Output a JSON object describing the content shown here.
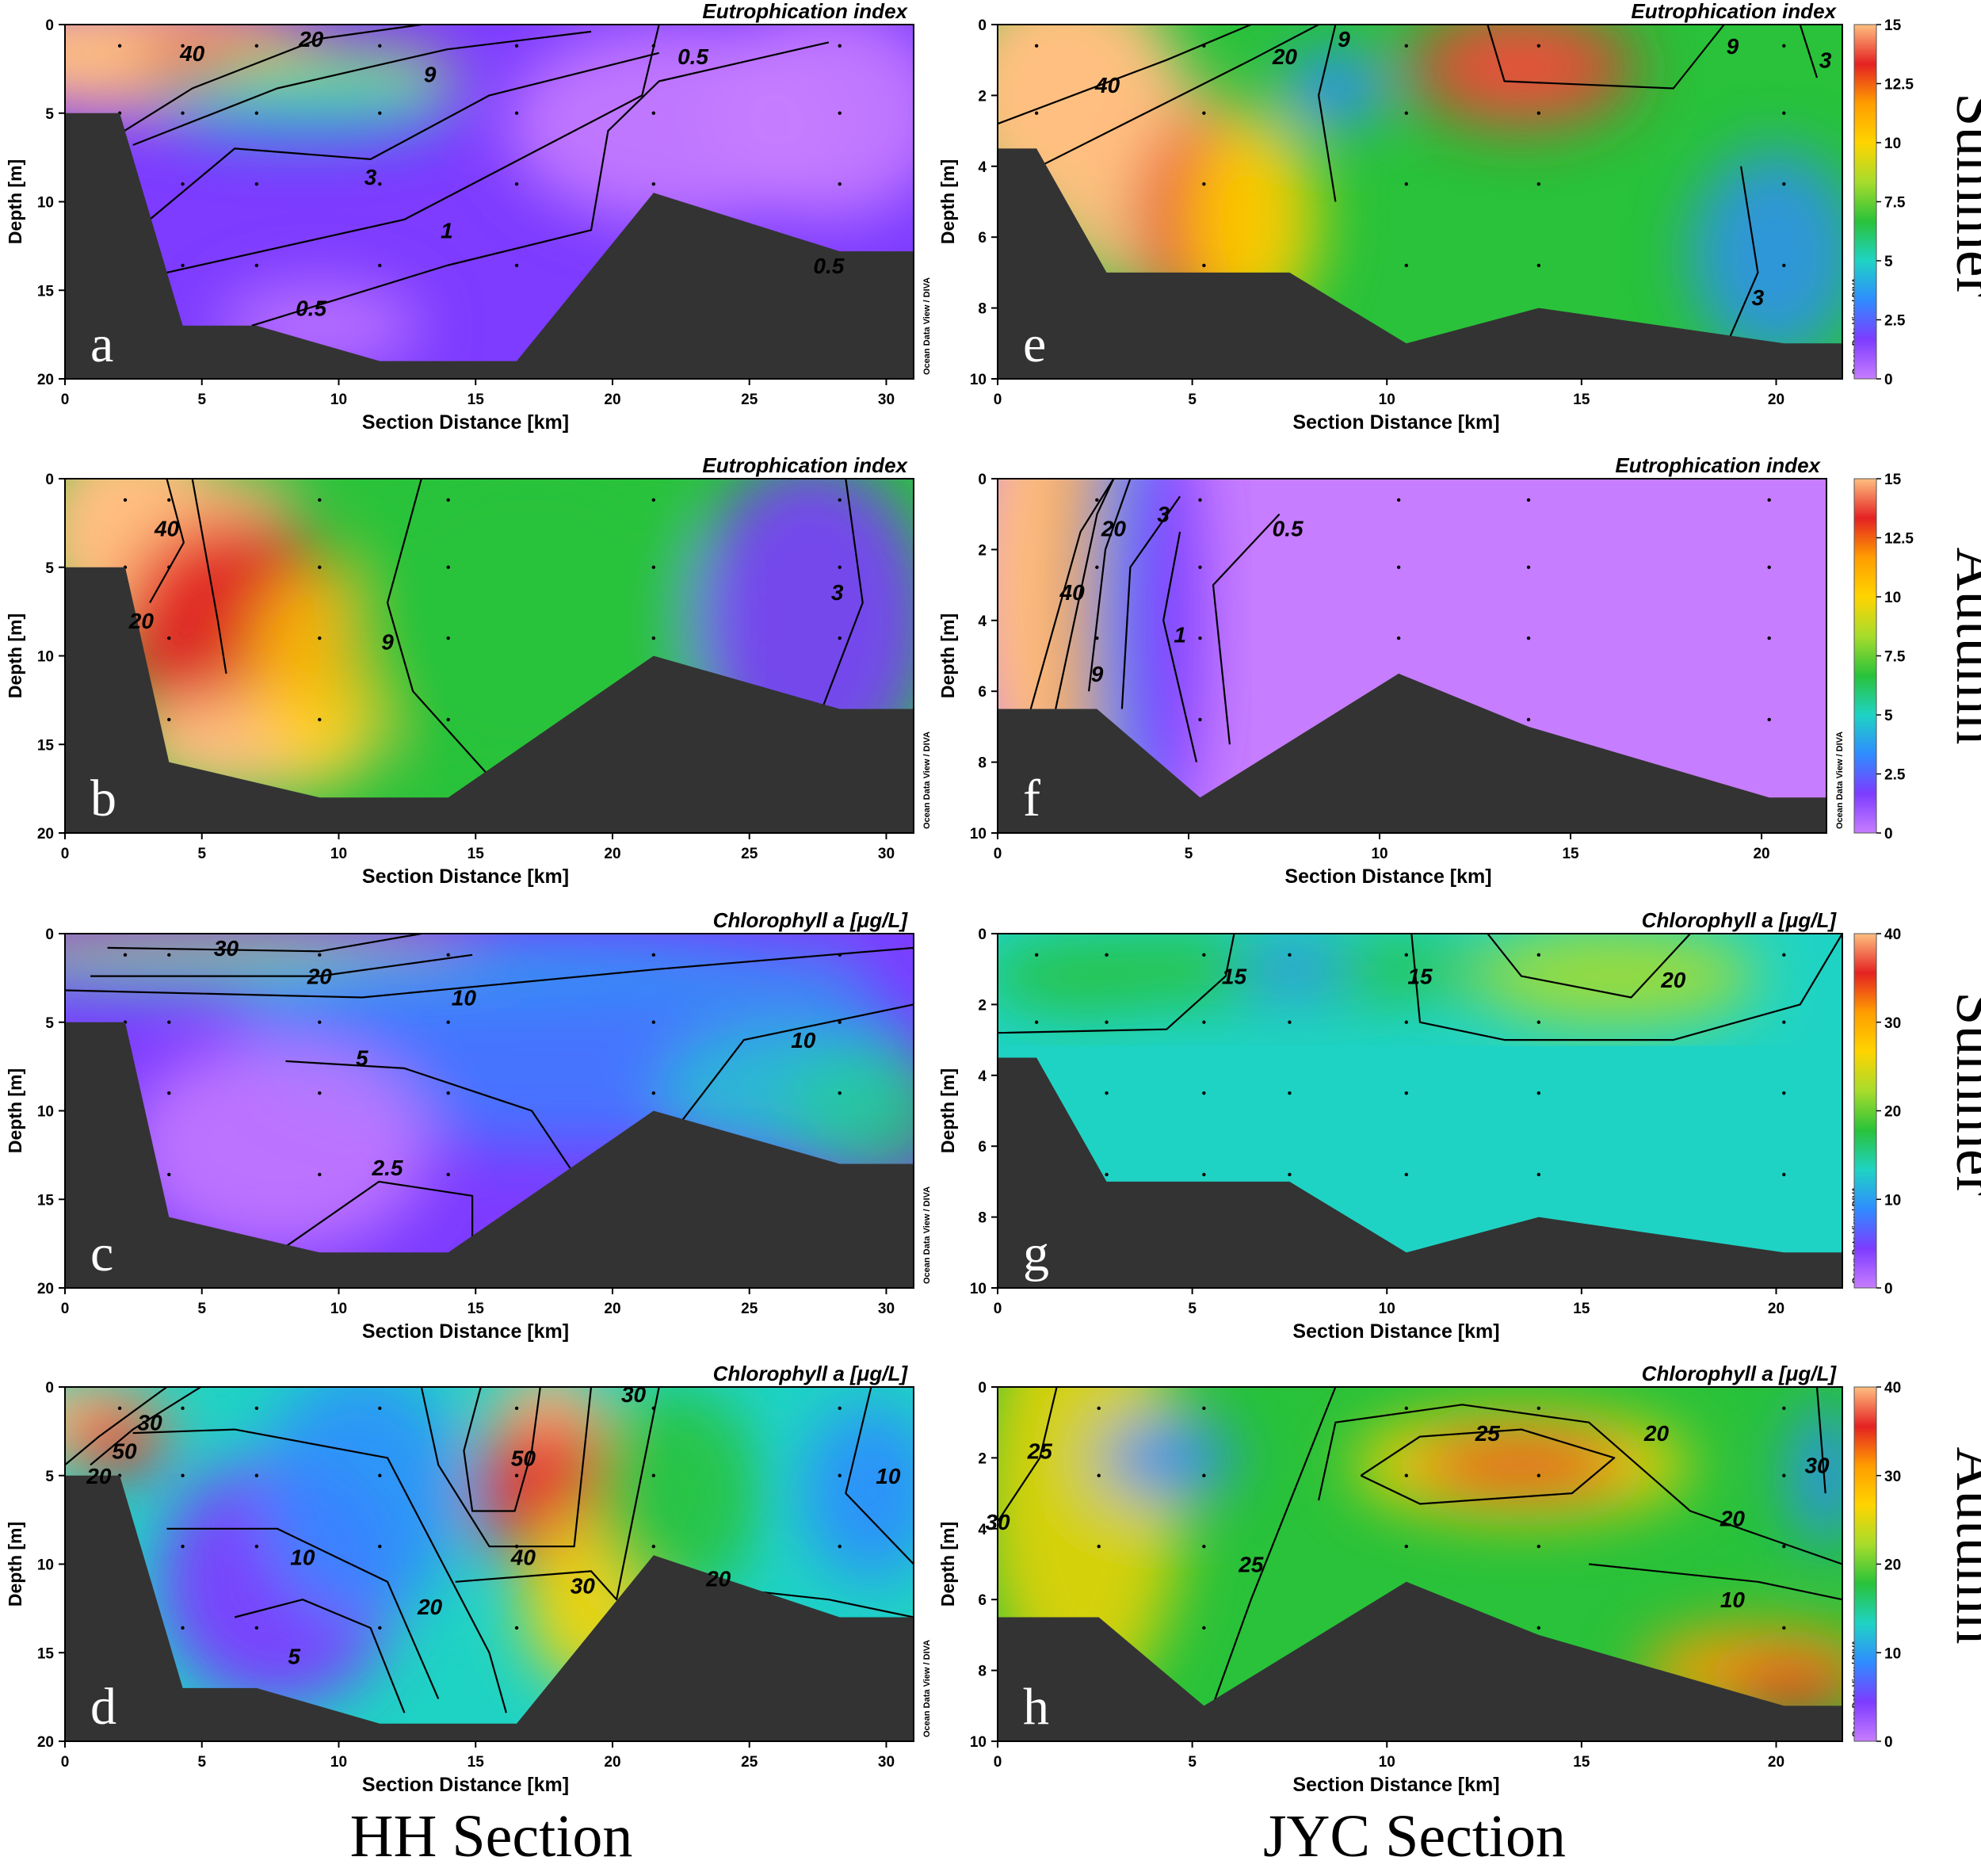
{
  "figure": {
    "bottom_labels": [
      "HH  Section",
      "JYC  Section"
    ],
    "season_labels": [
      "Summer",
      "Autumn",
      "Summer",
      "Autumn"
    ],
    "credit": "Ocean Data View / DIVA",
    "colors": {
      "ocean_floor": "#333333",
      "colormap": [
        "#c77dff",
        "#7d3cff",
        "#2f8cff",
        "#1fd3c4",
        "#29c23a",
        "#a7dc2c",
        "#ffd400",
        "#ff9d00",
        "#e42222",
        "#ffbf80"
      ]
    }
  },
  "chart_data": [
    {
      "panel": "a",
      "type": "heatmap",
      "title": "Eutrophication index",
      "xlabel": "Section Distance [km]",
      "ylabel": "Depth [m]",
      "xlim": [
        0,
        31
      ],
      "ylim": [
        20,
        0
      ],
      "xticks": [
        0,
        5,
        10,
        15,
        20,
        25,
        30
      ],
      "yticks": [
        0,
        5,
        10,
        15,
        20
      ],
      "contour_labels": [
        "40",
        "20",
        "9",
        "3",
        "1",
        "0.5",
        "0.5",
        "0.5"
      ],
      "stations_km": [
        2,
        4.3,
        7,
        11.5,
        16.5,
        21.5,
        28.3
      ],
      "bottom_profile": [
        [
          0,
          5
        ],
        [
          2,
          5
        ],
        [
          4.3,
          17
        ],
        [
          7,
          17
        ],
        [
          11.5,
          19
        ],
        [
          16.5,
          19
        ],
        [
          21.5,
          9.5
        ],
        [
          28.3,
          12.8
        ],
        [
          31,
          12.8
        ]
      ],
      "grid": false
    },
    {
      "panel": "b",
      "type": "heatmap",
      "title": "Eutrophication index",
      "xlabel": "Section Distance [km]",
      "ylabel": "Depth [m]",
      "xlim": [
        0,
        31
      ],
      "ylim": [
        20,
        0
      ],
      "xticks": [
        0,
        5,
        10,
        15,
        20,
        25,
        30
      ],
      "yticks": [
        0,
        5,
        10,
        15,
        20
      ],
      "contour_labels": [
        "40",
        "20",
        "9",
        "3"
      ],
      "stations_km": [
        2.2,
        3.8,
        9.3,
        14,
        21.5,
        28.3
      ],
      "bottom_profile": [
        [
          0,
          5
        ],
        [
          2.2,
          5
        ],
        [
          3.8,
          16
        ],
        [
          9.3,
          18
        ],
        [
          14,
          18
        ],
        [
          21.5,
          10
        ],
        [
          28.3,
          13
        ],
        [
          31,
          13
        ]
      ],
      "grid": false
    },
    {
      "panel": "c",
      "type": "heatmap",
      "title": "Chlorophyll a [μg/L]",
      "xlabel": "Section Distance [km]",
      "ylabel": "Depth [m]",
      "xlim": [
        0,
        31
      ],
      "ylim": [
        20,
        0
      ],
      "xticks": [
        0,
        5,
        10,
        15,
        20,
        25,
        30
      ],
      "yticks": [
        0,
        5,
        10,
        15,
        20
      ],
      "contour_labels": [
        "30",
        "20",
        "10",
        "5",
        "10",
        "2.5"
      ],
      "stations_km": [
        2.2,
        3.8,
        9.3,
        14,
        21.5,
        28.3
      ],
      "bottom_profile": [
        [
          0,
          5
        ],
        [
          2.2,
          5
        ],
        [
          3.8,
          16
        ],
        [
          9.3,
          18
        ],
        [
          14,
          18
        ],
        [
          21.5,
          10
        ],
        [
          28.3,
          13
        ],
        [
          31,
          13
        ]
      ],
      "grid": false
    },
    {
      "panel": "d",
      "type": "heatmap",
      "title": "Chlorophyll a [μg/L]",
      "xlabel": "Section Distance [km]",
      "ylabel": "Depth [m]",
      "xlim": [
        0,
        31
      ],
      "ylim": [
        20,
        0
      ],
      "xticks": [
        0,
        5,
        10,
        15,
        20,
        25,
        30
      ],
      "yticks": [
        0,
        5,
        10,
        15,
        20
      ],
      "contour_labels": [
        "50",
        "30",
        "20",
        "10",
        "5",
        "20",
        "50",
        "40",
        "30",
        "30",
        "20",
        "10"
      ],
      "stations_km": [
        2,
        4.3,
        7,
        11.5,
        16.5,
        21.5,
        28.3
      ],
      "bottom_profile": [
        [
          0,
          5
        ],
        [
          2,
          5
        ],
        [
          4.3,
          17
        ],
        [
          7,
          17
        ],
        [
          11.5,
          19
        ],
        [
          16.5,
          19
        ],
        [
          21.5,
          9.5
        ],
        [
          28.3,
          13
        ],
        [
          31,
          13
        ]
      ],
      "grid": false
    },
    {
      "panel": "e",
      "type": "heatmap",
      "title": "Eutrophication index",
      "xlabel": "Section Distance [km]",
      "ylabel": "Depth [m]",
      "xlim": [
        0,
        21.7
      ],
      "ylim": [
        10,
        0
      ],
      "xticks": [
        0,
        5,
        10,
        15,
        20
      ],
      "yticks": [
        0,
        2,
        4,
        6,
        8,
        10
      ],
      "contour_labels": [
        "40",
        "20",
        "9",
        "9",
        "3",
        "3"
      ],
      "stations_km": [
        1,
        5.3,
        10.5,
        13.9,
        20.2
      ],
      "bottom_profile": [
        [
          0,
          3.5
        ],
        [
          1,
          3.5
        ],
        [
          2.8,
          7
        ],
        [
          7.5,
          7
        ],
        [
          10.5,
          9
        ],
        [
          13.9,
          8
        ],
        [
          20.2,
          9
        ],
        [
          21.7,
          9
        ]
      ],
      "grid": false
    },
    {
      "panel": "f",
      "type": "heatmap",
      "title": "Eutrophication index",
      "xlabel": "Section Distance [km]",
      "ylabel": "Depth [m]",
      "xlim": [
        0,
        21.7
      ],
      "ylim": [
        10,
        0
      ],
      "xticks": [
        0,
        5,
        10,
        15,
        20
      ],
      "yticks": [
        0,
        2,
        4,
        6,
        8,
        10
      ],
      "contour_labels": [
        "40",
        "20",
        "9",
        "3",
        "1",
        "0.5"
      ],
      "stations_km": [
        2.6,
        5.3,
        10.5,
        13.9,
        20.2
      ],
      "bottom_profile": [
        [
          0,
          6.5
        ],
        [
          2.6,
          6.5
        ],
        [
          5.3,
          9
        ],
        [
          10.5,
          5.5
        ],
        [
          13.9,
          7
        ],
        [
          20.2,
          9
        ],
        [
          21.7,
          9
        ]
      ],
      "grid": false
    },
    {
      "panel": "g",
      "type": "heatmap",
      "title": "Chlorophyll a [μg/L]",
      "xlabel": "Section Distance [km]",
      "ylabel": "Depth [m]",
      "xlim": [
        0,
        21.7
      ],
      "ylim": [
        10,
        0
      ],
      "xticks": [
        0,
        5,
        10,
        15,
        20
      ],
      "yticks": [
        0,
        2,
        4,
        6,
        8,
        10
      ],
      "contour_labels": [
        "15",
        "15",
        "20"
      ],
      "stations_km": [
        1,
        2.8,
        5.3,
        7.5,
        10.5,
        13.9,
        20.2
      ],
      "bottom_profile": [
        [
          0,
          3.5
        ],
        [
          1,
          3.5
        ],
        [
          2.8,
          7
        ],
        [
          7.5,
          7
        ],
        [
          10.5,
          9
        ],
        [
          13.9,
          8
        ],
        [
          20.2,
          9
        ],
        [
          21.7,
          9
        ]
      ],
      "grid": false
    },
    {
      "panel": "h",
      "type": "heatmap",
      "title": "Chlorophyll a [μg/L]",
      "xlabel": "Section Distance [km]",
      "ylabel": "Depth [m]",
      "xlim": [
        0,
        21.7
      ],
      "ylim": [
        10,
        0
      ],
      "xticks": [
        0,
        5,
        10,
        15,
        20
      ],
      "yticks": [
        0,
        2,
        4,
        6,
        8,
        10
      ],
      "contour_labels": [
        "25",
        "30",
        "25",
        "20",
        "20",
        "25",
        "10",
        "30"
      ],
      "stations_km": [
        2.6,
        5.3,
        10.5,
        13.9,
        20.2
      ],
      "bottom_profile": [
        [
          0,
          6.5
        ],
        [
          2.6,
          6.5
        ],
        [
          5.3,
          9
        ],
        [
          10.5,
          5.5
        ],
        [
          13.9,
          7
        ],
        [
          20.2,
          9
        ],
        [
          21.7,
          9
        ]
      ],
      "grid": false
    }
  ],
  "colorbars": [
    {
      "panels": [
        "e",
        "f"
      ],
      "ticks": [
        "0",
        "2.5",
        "5",
        "7.5",
        "10",
        "12.5",
        "15"
      ]
    },
    {
      "panels": [
        "g",
        "h"
      ],
      "ticks": [
        "0",
        "10",
        "20",
        "30",
        "40"
      ]
    }
  ]
}
